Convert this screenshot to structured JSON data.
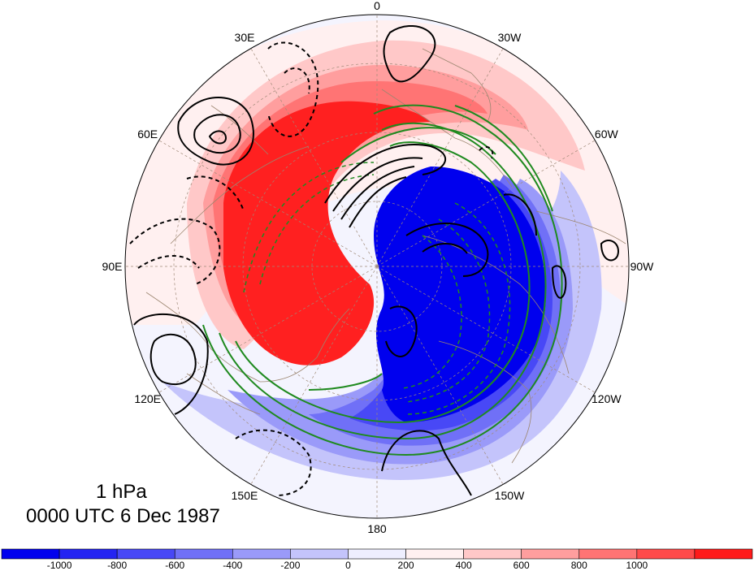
{
  "map": {
    "projection": "north polar stereographic",
    "center_pole": "North Pole",
    "longitude_labels": [
      {
        "text": "0",
        "lon": 0
      },
      {
        "text": "30W",
        "lon": -30
      },
      {
        "text": "60W",
        "lon": -60
      },
      {
        "text": "90W",
        "lon": -90
      },
      {
        "text": "120W",
        "lon": -120
      },
      {
        "text": "150W",
        "lon": -150
      },
      {
        "text": "180",
        "lon": 180
      },
      {
        "text": "150E",
        "lon": 150
      },
      {
        "text": "120E",
        "lon": 120
      },
      {
        "text": "90E",
        "lon": 90
      },
      {
        "text": "60E",
        "lon": 60
      },
      {
        "text": "30E",
        "lon": 30
      }
    ],
    "shading_colors": {
      "strong_positive": "#ff1a1a",
      "strong_negative": "#0000ee",
      "contour_black": "#000000",
      "contour_green": "#1f8a1f",
      "coastline": "#9c8670"
    }
  },
  "title": {
    "level": "1 hPa",
    "time": "0000 UTC 6 Dec 1987"
  },
  "colorbar": {
    "labels": [
      "-1000",
      "-800",
      "-600",
      "-400",
      "-200",
      "0",
      "200",
      "400",
      "600",
      "800",
      "1000"
    ],
    "colors": [
      "#0000ee",
      "#2424f2",
      "#4848f6",
      "#7070f7",
      "#9a9af9",
      "#c4c4fb",
      "#eeeefe",
      "#fff0f0",
      "#ffc8c8",
      "#ff9e9e",
      "#ff7474",
      "#ff4a4a",
      "#ff1a1a"
    ]
  }
}
